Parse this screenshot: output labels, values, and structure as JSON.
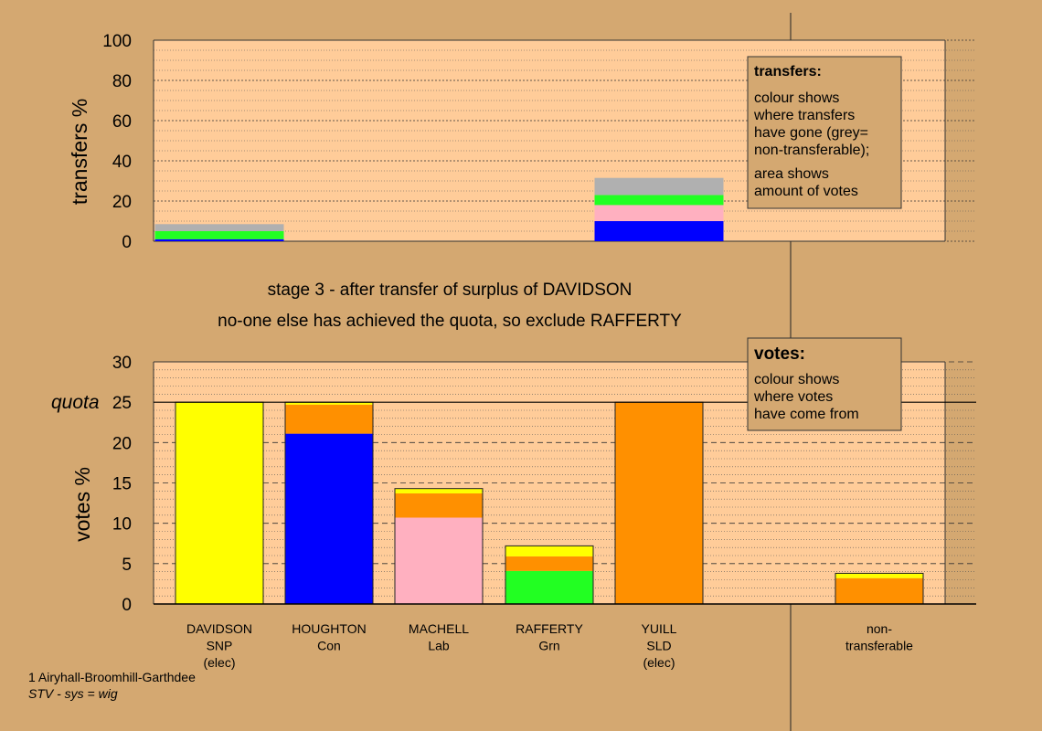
{
  "colors": {
    "background": "#d4a871",
    "plot_area": "#ffcc99",
    "SNP": "#ffff00",
    "Con": "#0000ff",
    "Lab": "#ffb0c0",
    "Grn": "#22ff22",
    "SLD": "#ff9000",
    "non-transferable": "#b0b0b0"
  },
  "stage_text": {
    "line1": "stage 3 - after transfer of surplus of DAVIDSON",
    "line2": "no-one else has achieved the quota, so exclude RAFFERTY"
  },
  "transfers_legend": {
    "title": "transfers:",
    "lines1": [
      "colour shows",
      "where transfers",
      "have gone (grey=",
      "non-transferable);"
    ],
    "lines2": [
      "area shows",
      "amount of votes"
    ]
  },
  "votes_legend": {
    "title": "votes:",
    "lines": [
      "colour shows",
      "where votes",
      "have come from"
    ]
  },
  "footer": {
    "ward": "1 Airyhall-Broomhill-Garthdee",
    "system": "STV - sys = wig"
  },
  "candidates": [
    {
      "name": "DAVIDSON",
      "party": "SNP",
      "status": "(elec)"
    },
    {
      "name": "HOUGHTON",
      "party": "Con",
      "status": ""
    },
    {
      "name": "MACHELL",
      "party": "Lab",
      "status": ""
    },
    {
      "name": "RAFFERTY",
      "party": "Grn",
      "status": ""
    },
    {
      "name": "YUILL",
      "party": "SLD",
      "status": "(elec)"
    },
    {
      "name": "non-",
      "party": "transferable",
      "status": ""
    }
  ],
  "chart_data": [
    {
      "type": "bar",
      "stacked": true,
      "ylabel": "transfers %",
      "ylim": [
        0,
        100
      ],
      "yticks": [
        0,
        20,
        40,
        60,
        80,
        100
      ],
      "grid": true,
      "bars": [
        {
          "slot": 0,
          "segments": [
            {
              "color_key": "Con",
              "value": 1.0
            },
            {
              "color_key": "Grn",
              "value": 4.0
            },
            {
              "color_key": "non-transferable",
              "value": 3.5
            }
          ]
        },
        {
          "slot": 4,
          "segments": [
            {
              "color_key": "Con",
              "value": 10.0
            },
            {
              "color_key": "Lab",
              "value": 8.0
            },
            {
              "color_key": "Grn",
              "value": 5.0
            },
            {
              "color_key": "non-transferable",
              "value": 8.5
            }
          ]
        }
      ]
    },
    {
      "type": "bar",
      "stacked": true,
      "ylabel": "votes %",
      "quota_label": "quota",
      "quota": 25,
      "ylim": [
        0,
        30
      ],
      "yticks": [
        0,
        5,
        10,
        15,
        20,
        25,
        30
      ],
      "grid": true,
      "bars": [
        {
          "slot": 0,
          "segments": [
            {
              "color_key": "SNP",
              "value": 25.0
            }
          ]
        },
        {
          "slot": 1,
          "segments": [
            {
              "color_key": "Con",
              "value": 21.1
            },
            {
              "color_key": "SLD",
              "value": 3.6
            },
            {
              "color_key": "SNP",
              "value": 0.3
            }
          ]
        },
        {
          "slot": 2,
          "segments": [
            {
              "color_key": "Lab",
              "value": 10.7
            },
            {
              "color_key": "SLD",
              "value": 3.0
            },
            {
              "color_key": "SNP",
              "value": 0.6
            }
          ]
        },
        {
          "slot": 3,
          "segments": [
            {
              "color_key": "Grn",
              "value": 4.1
            },
            {
              "color_key": "SLD",
              "value": 1.8
            },
            {
              "color_key": "SNP",
              "value": 1.3
            }
          ]
        },
        {
          "slot": 4,
          "segments": [
            {
              "color_key": "SLD",
              "value": 25.0
            }
          ]
        },
        {
          "slot": 5,
          "segments": [
            {
              "color_key": "SLD",
              "value": 3.2
            },
            {
              "color_key": "SNP",
              "value": 0.6
            }
          ]
        }
      ]
    }
  ]
}
